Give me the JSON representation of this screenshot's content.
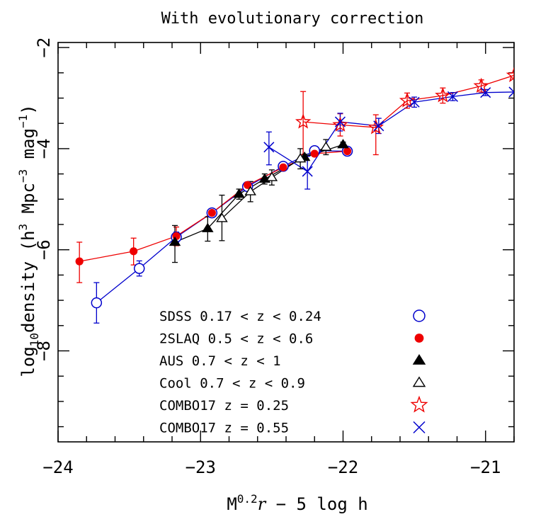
{
  "chart_data": {
    "type": "scatter",
    "title": "With evolutionary correction",
    "xlabel": {
      "main": "M",
      "sup": "0.2",
      "italic": "r",
      "rest": " − 5 log h"
    },
    "ylabel": {
      "prefix": "log",
      "sub": "10",
      "mid": "density (h",
      "sup1": "3",
      "mid2": " Mpc",
      "sup2": "−3",
      "mid3": " mag",
      "sup3": "−1",
      "suffix": ")"
    },
    "xlim": [
      -24.0,
      -20.8
    ],
    "ylim": [
      -9.8,
      -1.9
    ],
    "x_ticks": [
      {
        "value": -24,
        "label": "−24"
      },
      {
        "value": -23,
        "label": "−23"
      },
      {
        "value": -22,
        "label": "−22"
      },
      {
        "value": -21,
        "label": "−21"
      }
    ],
    "y_ticks": [
      {
        "value": -2,
        "label": "−2"
      },
      {
        "value": -4,
        "label": "−4"
      },
      {
        "value": -6,
        "label": "−6"
      },
      {
        "value": -8,
        "label": "−8"
      }
    ],
    "legend_position": "lower-right",
    "series": [
      {
        "name": "SDSS 0.17 < z < 0.24",
        "marker": "circle-open",
        "color": "#0000cc",
        "connect": true,
        "points": [
          {
            "x": -23.73,
            "y": -7.05,
            "lo": -7.45,
            "hi": -6.65
          },
          {
            "x": -23.43,
            "y": -6.37,
            "lo": -6.52,
            "hi": -6.22
          },
          {
            "x": -23.17,
            "y": -5.75,
            "lo": -5.85,
            "hi": -5.65
          },
          {
            "x": -22.92,
            "y": -5.27,
            "lo": -5.33,
            "hi": -5.21
          },
          {
            "x": -22.67,
            "y": -4.75,
            "lo": -4.81,
            "hi": -4.69
          },
          {
            "x": -22.42,
            "y": -4.35,
            "lo": -4.4,
            "hi": -4.3
          },
          {
            "x": -22.2,
            "y": -4.04,
            "lo": -4.09,
            "hi": -3.99
          },
          {
            "x": -21.97,
            "y": -4.05,
            "lo": -4.1,
            "hi": -4.0
          }
        ]
      },
      {
        "name": "2SLAQ 0.5 < z < 0.6",
        "marker": "circle-filled",
        "color": "#ee0000",
        "connect": true,
        "points": [
          {
            "x": -23.85,
            "y": -6.23,
            "lo": -6.65,
            "hi": -5.85
          },
          {
            "x": -23.47,
            "y": -6.03,
            "lo": -6.3,
            "hi": -5.77
          },
          {
            "x": -23.17,
            "y": -5.73,
            "lo": -5.92,
            "hi": -5.55
          },
          {
            "x": -22.92,
            "y": -5.27,
            "lo": -5.33,
            "hi": -5.21
          },
          {
            "x": -22.67,
            "y": -4.72,
            "lo": -4.78,
            "hi": -4.66
          },
          {
            "x": -22.42,
            "y": -4.37,
            "lo": -4.42,
            "hi": -4.32
          },
          {
            "x": -22.2,
            "y": -4.1,
            "lo": -4.15,
            "hi": -4.05
          },
          {
            "x": -21.97,
            "y": -4.05,
            "lo": -4.1,
            "hi": -4.0
          }
        ]
      },
      {
        "name": "AUS 0.7 < z < 1",
        "marker": "triangle-filled",
        "color": "#000000",
        "connect": true,
        "points": [
          {
            "x": -23.18,
            "y": -5.85,
            "lo": -6.25,
            "hi": -5.52
          },
          {
            "x": -22.95,
            "y": -5.58,
            "lo": -5.83,
            "hi": -5.35
          },
          {
            "x": -22.73,
            "y": -4.9,
            "lo": -5.0,
            "hi": -4.8
          },
          {
            "x": -22.55,
            "y": -4.6,
            "lo": -4.7,
            "hi": -4.5
          },
          {
            "x": -22.27,
            "y": -4.17,
            "lo": -4.23,
            "hi": -4.11
          },
          {
            "x": -22.0,
            "y": -3.92,
            "lo": -3.97,
            "hi": -3.87
          }
        ]
      },
      {
        "name": "Cool 0.7 < z < 0.9",
        "marker": "triangle-open",
        "color": "#000000",
        "connect": true,
        "points": [
          {
            "x": -22.85,
            "y": -5.38,
            "lo": -5.82,
            "hi": -4.92
          },
          {
            "x": -22.65,
            "y": -4.85,
            "lo": -5.05,
            "hi": -4.65
          },
          {
            "x": -22.5,
            "y": -4.57,
            "lo": -4.72,
            "hi": -4.42
          },
          {
            "x": -22.3,
            "y": -4.2,
            "lo": -4.4,
            "hi": -4.0
          },
          {
            "x": -22.12,
            "y": -3.97,
            "lo": -4.12,
            "hi": -3.82
          }
        ]
      },
      {
        "name": "COMBO17 z = 0.25",
        "marker": "star-open",
        "color": "#ee0000",
        "connect": true,
        "points": [
          {
            "x": -22.28,
            "y": -3.47,
            "lo": -4.12,
            "hi": -2.87
          },
          {
            "x": -22.02,
            "y": -3.53,
            "lo": -3.75,
            "hi": -3.31
          },
          {
            "x": -21.77,
            "y": -3.58,
            "lo": -4.12,
            "hi": -3.33
          },
          {
            "x": -21.55,
            "y": -3.05,
            "lo": -3.2,
            "hi": -2.9
          },
          {
            "x": -21.3,
            "y": -2.95,
            "lo": -3.1,
            "hi": -2.8
          },
          {
            "x": -21.03,
            "y": -2.76,
            "lo": -2.88,
            "hi": -2.64
          },
          {
            "x": -20.8,
            "y": -2.55,
            "lo": -2.6,
            "hi": -2.5
          }
        ]
      },
      {
        "name": "COMBO17 z = 0.55",
        "marker": "cross",
        "color": "#0000cc",
        "connect": true,
        "points": [
          {
            "x": -22.52,
            "y": -3.97,
            "lo": -4.32,
            "hi": -3.67
          },
          {
            "x": -22.25,
            "y": -4.45,
            "lo": -4.8,
            "hi": -4.15
          },
          {
            "x": -22.02,
            "y": -3.47,
            "lo": -3.65,
            "hi": -3.3
          },
          {
            "x": -21.75,
            "y": -3.55,
            "lo": -3.7,
            "hi": -3.4
          },
          {
            "x": -21.5,
            "y": -3.08,
            "lo": -3.18,
            "hi": -2.98
          },
          {
            "x": -21.23,
            "y": -2.97,
            "lo": -3.05,
            "hi": -2.89
          },
          {
            "x": -21.0,
            "y": -2.89,
            "lo": -2.95,
            "hi": -2.83
          },
          {
            "x": -20.8,
            "y": -2.88,
            "lo": -2.88,
            "hi": -2.88
          }
        ]
      }
    ]
  }
}
